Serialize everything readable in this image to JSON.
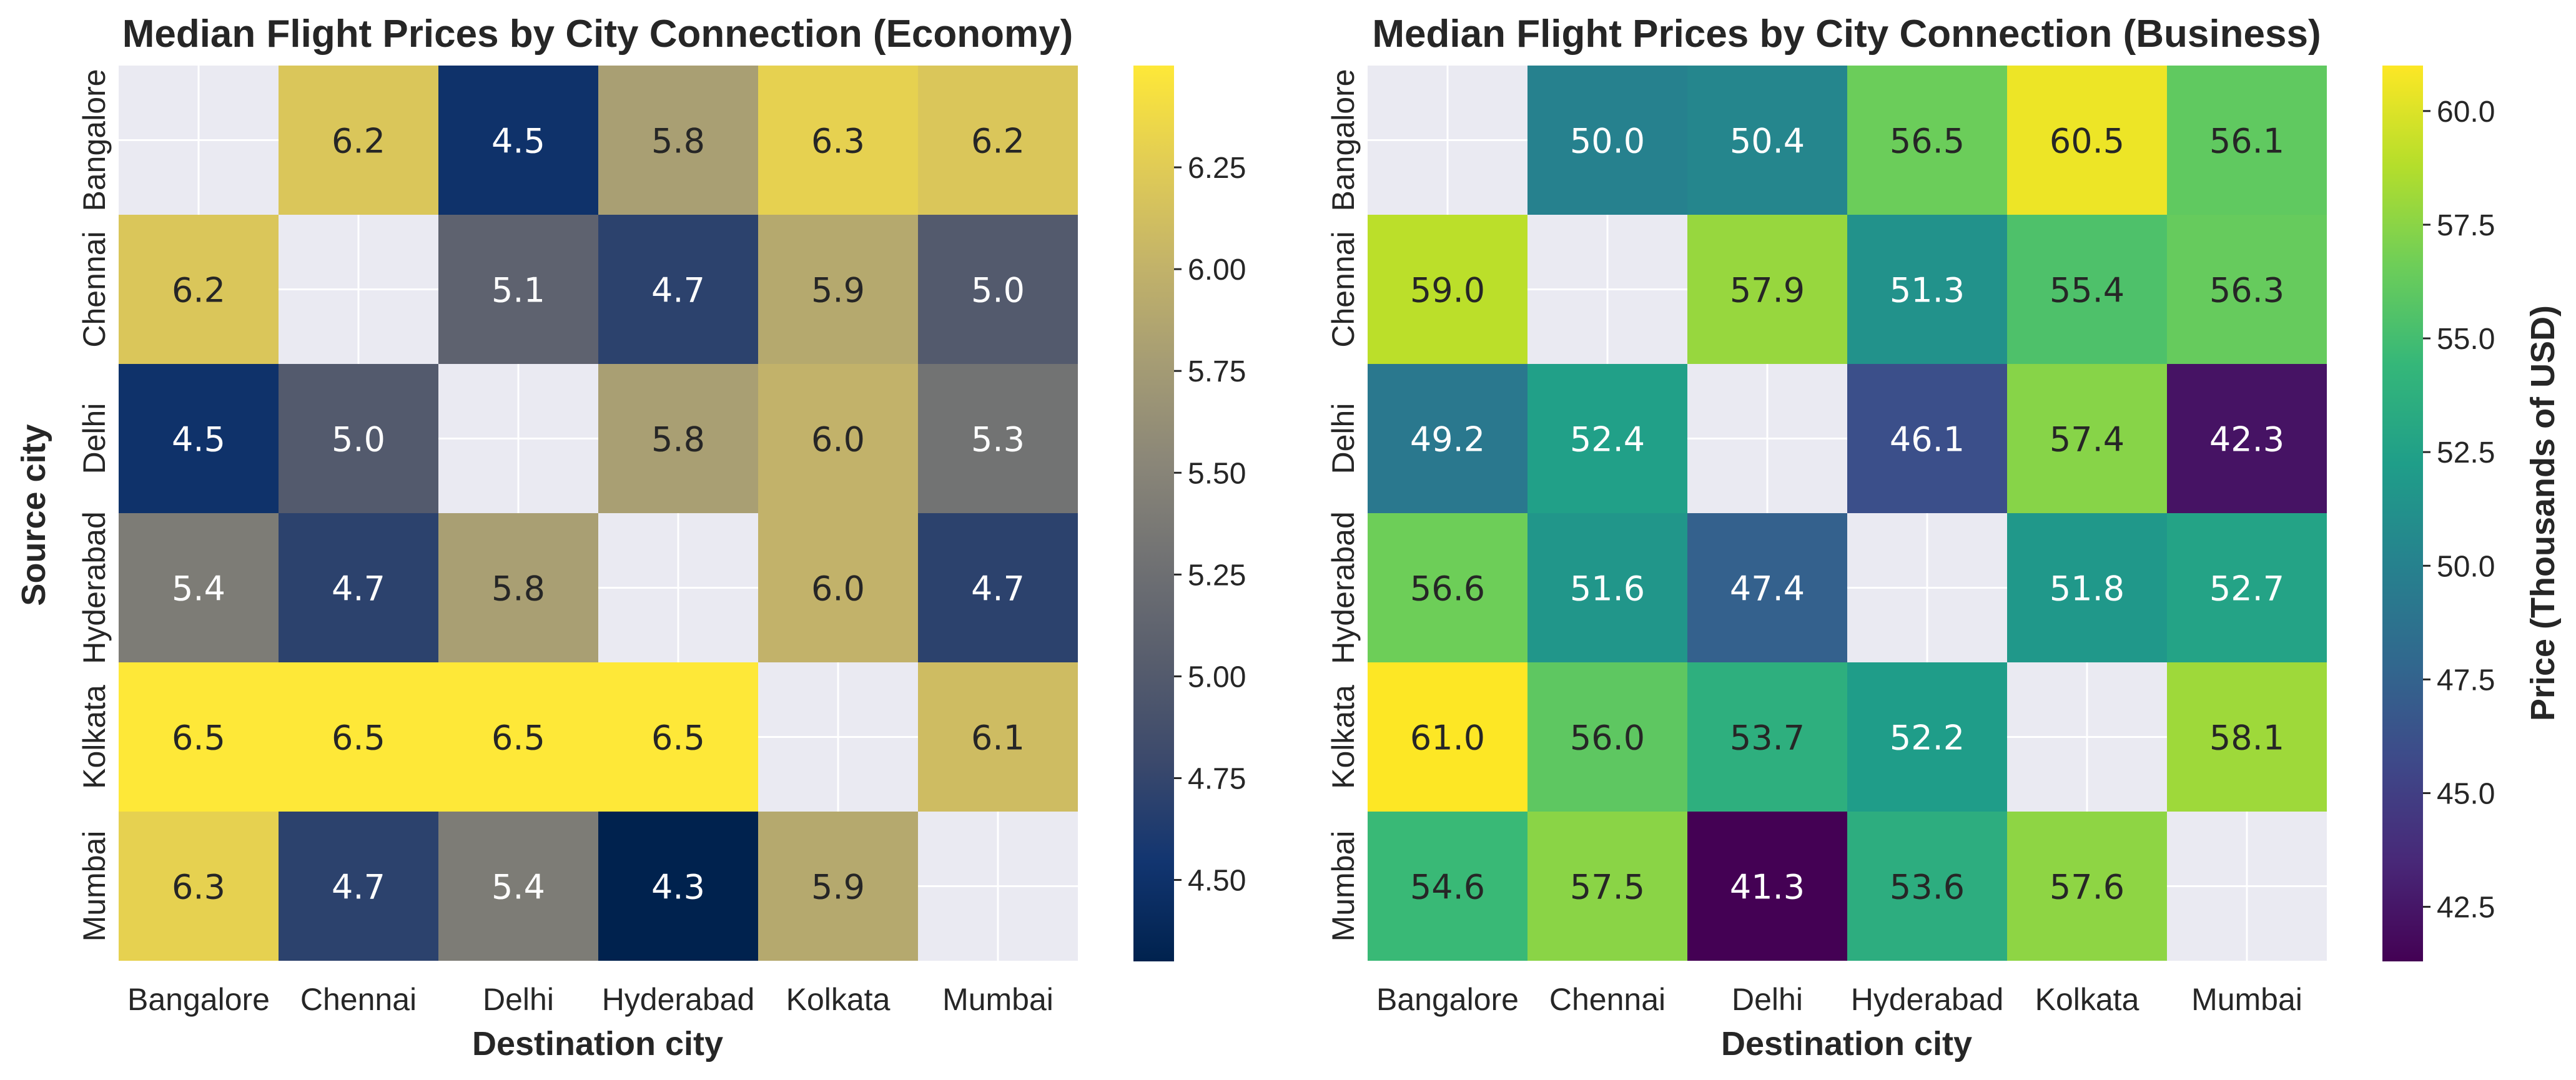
{
  "chart_data": [
    {
      "type": "heatmap",
      "title": "Median Flight Prices by City Connection (Economy)",
      "xlabel": "Destination city",
      "ylabel": "Source city",
      "x_categories": [
        "Bangalore",
        "Chennai",
        "Delhi",
        "Hyderabad",
        "Kolkata",
        "Mumbai"
      ],
      "y_categories": [
        "Bangalore",
        "Chennai",
        "Delhi",
        "Hyderabad",
        "Kolkata",
        "Mumbai"
      ],
      "values": [
        [
          null,
          6.2,
          4.5,
          5.8,
          6.3,
          6.2
        ],
        [
          6.2,
          null,
          5.1,
          4.7,
          5.9,
          5.0
        ],
        [
          4.5,
          5.0,
          null,
          5.8,
          6.0,
          5.3
        ],
        [
          5.4,
          4.7,
          5.8,
          null,
          6.0,
          4.7
        ],
        [
          6.5,
          6.5,
          6.5,
          6.5,
          null,
          6.1
        ],
        [
          6.3,
          4.7,
          5.4,
          4.3,
          5.9,
          null
        ]
      ],
      "colormap": "cividis",
      "colorbar": {
        "label": "",
        "range": [
          4.3,
          6.5
        ],
        "ticks": [
          "4.50",
          "4.75",
          "5.00",
          "5.25",
          "5.50",
          "5.75",
          "6.00",
          "6.25"
        ]
      }
    },
    {
      "type": "heatmap",
      "title": "Median Flight Prices by City Connection (Business)",
      "xlabel": "Destination city",
      "ylabel": "",
      "x_categories": [
        "Bangalore",
        "Chennai",
        "Delhi",
        "Hyderabad",
        "Kolkata",
        "Mumbai"
      ],
      "y_categories": [
        "Bangalore",
        "Chennai",
        "Delhi",
        "Hyderabad",
        "Kolkata",
        "Mumbai"
      ],
      "values": [
        [
          null,
          50.0,
          50.4,
          56.5,
          60.5,
          56.1
        ],
        [
          59.0,
          null,
          57.9,
          51.3,
          55.4,
          56.3
        ],
        [
          49.2,
          52.4,
          null,
          46.1,
          57.4,
          42.3
        ],
        [
          56.6,
          51.6,
          47.4,
          null,
          51.8,
          52.7
        ],
        [
          61.0,
          56.0,
          53.7,
          52.2,
          null,
          58.1
        ],
        [
          54.6,
          57.5,
          41.3,
          53.6,
          57.6,
          null
        ]
      ],
      "colormap": "viridis",
      "colorbar": {
        "label": "Price (Thousands of USD)",
        "range": [
          41.3,
          61.0
        ],
        "ticks": [
          "42.5",
          "45.0",
          "47.5",
          "50.0",
          "52.5",
          "55.0",
          "57.5",
          "60.0"
        ]
      }
    }
  ],
  "colors": {
    "missing_cell": "#eaeaf2",
    "text_dark": "#262626",
    "text_light": "#ffffff"
  }
}
